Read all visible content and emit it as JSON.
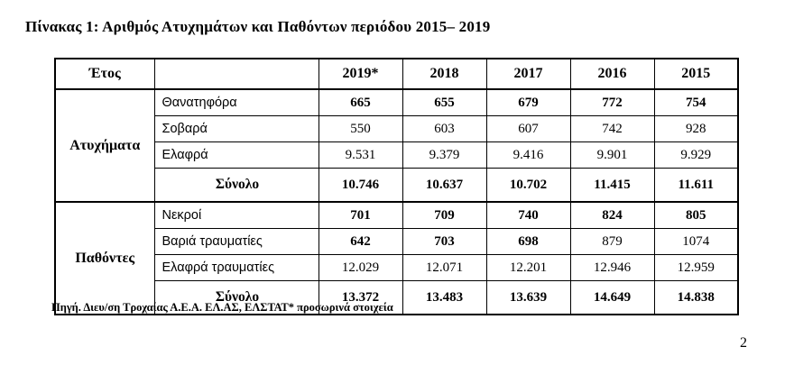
{
  "doc": {
    "title": "Πίνακας 1: Αριθμός Ατυχημάτων και Παθόντων περιόδου 2015– 2019",
    "source_note": "Πηγή. Διευ/ση Τροχαίας Α.Ε.Α. ΕΛ.ΑΣ, ΕΛΣΤΑΤ* προσωρινά στοιχεία",
    "page_number": "2"
  },
  "table": {
    "header": {
      "year_label": "Έτος",
      "empty_label": "",
      "years": [
        "2019*",
        "2018",
        "2017",
        "2016",
        "2015"
      ]
    },
    "groups": [
      {
        "label": "Ατυχήματα",
        "rows": [
          {
            "label": "Θανατηφόρα",
            "values": [
              "665",
              "655",
              "679",
              "772",
              "754"
            ]
          },
          {
            "label": "Σοβαρά",
            "values": [
              "550",
              "603",
              "607",
              "742",
              "928"
            ]
          },
          {
            "label": "Ελαφρά",
            "values": [
              "9.531",
              "9.379",
              "9.416",
              "9.901",
              "9.929"
            ]
          },
          {
            "label": "Σύνολο",
            "values": [
              "10.746",
              "10.637",
              "10.702",
              "11.415",
              "11.611"
            ]
          }
        ]
      },
      {
        "label": "Παθόντες",
        "rows": [
          {
            "label": "Νεκροί",
            "values": [
              "701",
              "709",
              "740",
              "824",
              "805"
            ]
          },
          {
            "label": "Βαριά τραυματίες",
            "values": [
              "642",
              "703",
              "698",
              "879",
              "1074"
            ]
          },
          {
            "label": "Ελαφρά τραυματίες",
            "values": [
              "12.029",
              "12.071",
              "12.201",
              "12.946",
              "12.959"
            ]
          },
          {
            "label": "Σύνολο",
            "values": [
              "13.372",
              "13.483",
              "13.639",
              "14.649",
              "14.838"
            ]
          }
        ]
      }
    ]
  }
}
